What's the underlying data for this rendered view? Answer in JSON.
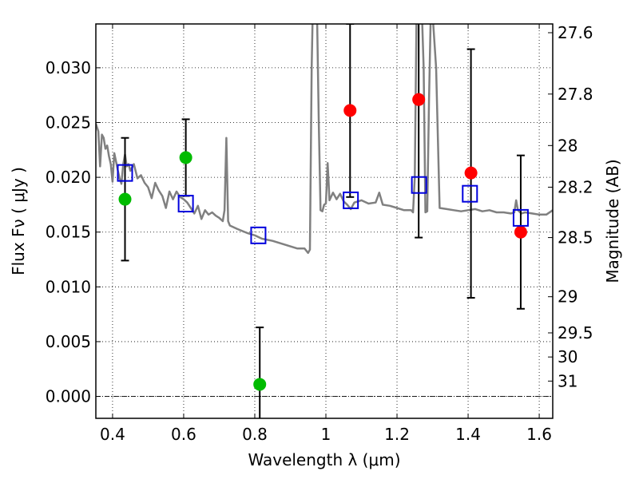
{
  "chart_data": {
    "type": "scatter",
    "title": "",
    "xlabel": "Wavelength  λ (μm)",
    "ylabel": "Flux  Fν  ( μJy )",
    "ylabel_right": "Magnitude (AB)",
    "xlim": [
      0.353,
      1.638
    ],
    "ylim": [
      -0.002,
      0.034
    ],
    "grid": true,
    "legend": "none",
    "x_ticks": [
      0.4,
      0.6,
      0.8,
      1.0,
      1.2,
      1.4,
      1.6
    ],
    "x_tick_labels": [
      "0.4",
      "0.6",
      "0.8",
      "1",
      "1.2",
      "1.4",
      "1.6"
    ],
    "y_ticks": [
      0.0,
      0.005,
      0.01,
      0.015,
      0.02,
      0.025,
      0.03
    ],
    "y_tick_labels": [
      "0.000",
      "0.005",
      "0.010",
      "0.015",
      "0.020",
      "0.025",
      "0.030"
    ],
    "right_ticks": [
      {
        "label": "27.6",
        "flux": 0.0332
      },
      {
        "label": "27.8",
        "flux": 0.0276
      },
      {
        "label": "28",
        "flux": 0.0229
      },
      {
        "label": "28.2",
        "flux": 0.0191
      },
      {
        "label": "28.5",
        "flux": 0.0145
      },
      {
        "label": "29",
        "flux": 0.0091
      },
      {
        "label": "29.5",
        "flux": 0.0058
      },
      {
        "label": "30",
        "flux": 0.0036
      },
      {
        "label": "31",
        "flux": 0.0014
      }
    ],
    "zero_line": 0.0,
    "series": [
      {
        "name": "spectrum",
        "kind": "line",
        "color": "#808080",
        "x": [
          0.353,
          0.36,
          0.365,
          0.37,
          0.375,
          0.38,
          0.385,
          0.39,
          0.395,
          0.4,
          0.405,
          0.41,
          0.415,
          0.42,
          0.425,
          0.43,
          0.435,
          0.44,
          0.445,
          0.45,
          0.46,
          0.47,
          0.48,
          0.49,
          0.5,
          0.51,
          0.52,
          0.53,
          0.54,
          0.55,
          0.56,
          0.57,
          0.58,
          0.59,
          0.6,
          0.61,
          0.62,
          0.63,
          0.64,
          0.65,
          0.66,
          0.67,
          0.68,
          0.69,
          0.7,
          0.71,
          0.715,
          0.72,
          0.725,
          0.73,
          0.75,
          0.78,
          0.8,
          0.82,
          0.85,
          0.88,
          0.9,
          0.92,
          0.94,
          0.95,
          0.955,
          0.96,
          0.963,
          0.966,
          0.97,
          0.975,
          0.98,
          0.985,
          0.99,
          0.995,
          1.0,
          1.005,
          1.01,
          1.02,
          1.03,
          1.04,
          1.05,
          1.06,
          1.07,
          1.08,
          1.1,
          1.12,
          1.14,
          1.15,
          1.16,
          1.18,
          1.2,
          1.22,
          1.24,
          1.245,
          1.25,
          1.255,
          1.26,
          1.265,
          1.27,
          1.275,
          1.28,
          1.285,
          1.29,
          1.295,
          1.3,
          1.31,
          1.32,
          1.34,
          1.36,
          1.38,
          1.4,
          1.42,
          1.44,
          1.46,
          1.48,
          1.5,
          1.52,
          1.53,
          1.535,
          1.54,
          1.55,
          1.56,
          1.58,
          1.6,
          1.62,
          1.638
        ],
        "y": [
          0.0249,
          0.0242,
          0.021,
          0.0239,
          0.0236,
          0.0226,
          0.0229,
          0.0219,
          0.0212,
          0.0196,
          0.0222,
          0.0214,
          0.0206,
          0.0199,
          0.0194,
          0.0212,
          0.0221,
          0.021,
          0.0212,
          0.0206,
          0.0212,
          0.0199,
          0.0202,
          0.0195,
          0.0191,
          0.0181,
          0.0195,
          0.0188,
          0.0183,
          0.0172,
          0.0187,
          0.018,
          0.0187,
          0.0182,
          0.018,
          0.0177,
          0.0172,
          0.0167,
          0.0174,
          0.0162,
          0.017,
          0.0166,
          0.0168,
          0.0165,
          0.0163,
          0.016,
          0.017,
          0.0236,
          0.016,
          0.0156,
          0.0153,
          0.0149,
          0.0147,
          0.0144,
          0.0142,
          0.0139,
          0.0137,
          0.0135,
          0.0135,
          0.0131,
          0.0134,
          0.03,
          0.035,
          0.035,
          0.035,
          0.035,
          0.025,
          0.017,
          0.0169,
          0.0175,
          0.0176,
          0.0213,
          0.0179,
          0.0186,
          0.018,
          0.0185,
          0.0178,
          0.0175,
          0.0171,
          0.0177,
          0.0179,
          0.0176,
          0.0177,
          0.0186,
          0.0175,
          0.0174,
          0.0172,
          0.017,
          0.017,
          0.0168,
          0.02,
          0.035,
          0.035,
          0.035,
          0.035,
          0.03,
          0.0168,
          0.0169,
          0.027,
          0.035,
          0.035,
          0.03,
          0.0172,
          0.0171,
          0.017,
          0.0169,
          0.017,
          0.0171,
          0.0169,
          0.017,
          0.0168,
          0.0168,
          0.0167,
          0.0168,
          0.0179,
          0.017,
          0.0167,
          0.0168,
          0.0167,
          0.0166,
          0.0166,
          0.017
        ]
      },
      {
        "name": "photometry-optical",
        "kind": "points",
        "color": "#00bb00",
        "points": [
          {
            "x": 0.435,
            "y": 0.018,
            "err_lo": 0.0124,
            "err_hi": 0.0236
          },
          {
            "x": 0.606,
            "y": 0.0218,
            "err_lo": 0.0183,
            "err_hi": 0.0253
          },
          {
            "x": 0.814,
            "y": 0.0011,
            "err_lo": -0.003,
            "err_hi": 0.0063
          }
        ]
      },
      {
        "name": "photometry-nir",
        "kind": "points",
        "color": "#ff0000",
        "points": [
          {
            "x": 1.068,
            "y": 0.0261,
            "err_lo": 0.0182,
            "err_hi": 0.034
          },
          {
            "x": 1.261,
            "y": 0.0271,
            "err_lo": 0.0145,
            "err_hi": 0.036
          },
          {
            "x": 1.408,
            "y": 0.0204,
            "err_lo": 0.009,
            "err_hi": 0.0317
          },
          {
            "x": 1.548,
            "y": 0.015,
            "err_lo": 0.008,
            "err_hi": 0.022
          }
        ]
      },
      {
        "name": "model-synthetic-photometry",
        "kind": "squares",
        "color": "#0000dd",
        "points": [
          {
            "x": 0.435,
            "y": 0.0204
          },
          {
            "x": 0.606,
            "y": 0.0176
          },
          {
            "x": 0.81,
            "y": 0.0147
          },
          {
            "x": 1.07,
            "y": 0.0179
          },
          {
            "x": 1.262,
            "y": 0.0193
          },
          {
            "x": 1.405,
            "y": 0.0185
          },
          {
            "x": 1.548,
            "y": 0.0163
          }
        ]
      }
    ]
  }
}
